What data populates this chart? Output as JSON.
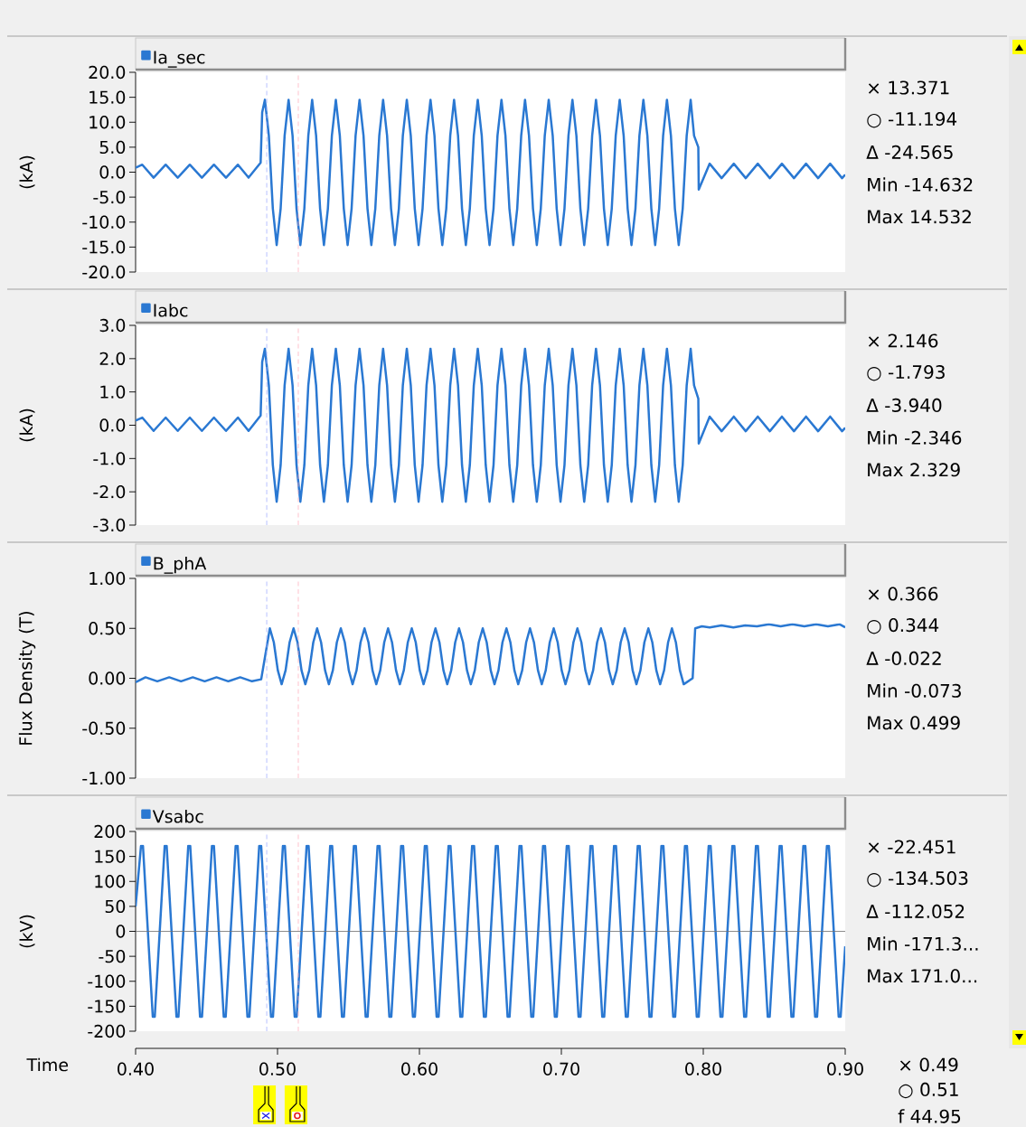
{
  "chart_data": [
    {
      "type": "line",
      "ylabel": "(kA)",
      "xlim": [
        0.4,
        0.9
      ],
      "ylim": [
        -20,
        20
      ],
      "tick_labels": "y",
      "legend": "top left",
      "yticks": [
        {
          "value": -20,
          "label": "-20.0"
        },
        {
          "value": -15,
          "label": "-15.0"
        },
        {
          "value": -10,
          "label": "-10.0"
        },
        {
          "value": -5,
          "label": "-5.0"
        },
        {
          "value": 0,
          "label": "0.0"
        },
        {
          "value": 5,
          "label": "5.0"
        },
        {
          "value": 10,
          "label": "10.0"
        },
        {
          "value": 15,
          "label": "15.0"
        },
        {
          "value": 20,
          "label": "20.0"
        }
      ],
      "x": [
        0.4,
        0.4047,
        0.4127,
        0.4212,
        0.4297,
        0.4382,
        0.4467,
        0.4552,
        0.4637,
        0.4721,
        0.4796,
        0.4881,
        0.4892,
        0.4911,
        0.4939,
        0.4967,
        0.4994,
        0.5022,
        0.505,
        0.5078,
        0.5106,
        0.5134,
        0.5161,
        0.5189,
        0.5217,
        0.5244,
        0.5272,
        0.53,
        0.5327,
        0.5355,
        0.5383,
        0.5411,
        0.5439,
        0.5467,
        0.5494,
        0.5522,
        0.555,
        0.5578,
        0.5606,
        0.5634,
        0.5661,
        0.5689,
        0.5717,
        0.5744,
        0.5772,
        0.58,
        0.5827,
        0.5855,
        0.5883,
        0.5911,
        0.5939,
        0.5967,
        0.5994,
        0.6022,
        0.605,
        0.6078,
        0.6106,
        0.6134,
        0.6161,
        0.6189,
        0.6217,
        0.6244,
        0.6272,
        0.63,
        0.6327,
        0.6355,
        0.6383,
        0.6411,
        0.6439,
        0.6467,
        0.6494,
        0.6522,
        0.655,
        0.6578,
        0.6606,
        0.6634,
        0.6661,
        0.6689,
        0.6717,
        0.6744,
        0.6772,
        0.68,
        0.6827,
        0.6855,
        0.6883,
        0.6911,
        0.6939,
        0.6967,
        0.6994,
        0.7022,
        0.705,
        0.7078,
        0.7106,
        0.7134,
        0.7161,
        0.7189,
        0.7217,
        0.7244,
        0.7272,
        0.73,
        0.7327,
        0.7355,
        0.7383,
        0.7411,
        0.7439,
        0.7467,
        0.7494,
        0.7522,
        0.755,
        0.7578,
        0.7606,
        0.7634,
        0.7661,
        0.7689,
        0.7717,
        0.7744,
        0.7772,
        0.78,
        0.7827,
        0.7855,
        0.7883,
        0.7911,
        0.7935,
        0.7965,
        0.7968,
        0.8045,
        0.8129,
        0.8215,
        0.8299,
        0.8384,
        0.8469,
        0.8554,
        0.8639,
        0.8724,
        0.8809,
        0.8894,
        0.8978,
        0.9
      ],
      "series": [
        {
          "name": "Ia_sec",
          "color": "#2a78d2",
          "values": [
            0.9,
            1.5,
            -1.1,
            1.5,
            -1.1,
            1.5,
            -1.1,
            1.5,
            -1.1,
            1.5,
            -1.1,
            1.9,
            12.0,
            14.5,
            7.3,
            -7.3,
            -14.6,
            -7.3,
            7.3,
            14.5,
            7.3,
            -7.3,
            -14.6,
            -7.3,
            7.3,
            14.5,
            7.3,
            -7.3,
            -14.6,
            -7.3,
            7.3,
            14.5,
            7.3,
            -7.3,
            -14.6,
            -7.3,
            7.3,
            14.5,
            7.3,
            -7.3,
            -14.6,
            -7.3,
            7.3,
            14.5,
            7.3,
            -7.3,
            -14.6,
            -7.3,
            7.3,
            14.5,
            7.3,
            -7.3,
            -14.6,
            -7.3,
            7.3,
            14.5,
            7.3,
            -7.3,
            -14.6,
            -7.3,
            7.3,
            14.5,
            7.3,
            -7.3,
            -14.6,
            -7.3,
            7.3,
            14.5,
            7.3,
            -7.3,
            -14.6,
            -7.3,
            7.3,
            14.5,
            7.3,
            -7.3,
            -14.6,
            -7.3,
            7.3,
            14.5,
            7.3,
            -7.3,
            -14.6,
            -7.3,
            7.3,
            14.5,
            7.3,
            -7.3,
            -14.6,
            -7.3,
            7.3,
            14.5,
            7.3,
            -7.3,
            -14.6,
            -7.3,
            7.3,
            14.5,
            7.3,
            -7.3,
            -14.6,
            -7.3,
            7.3,
            14.5,
            7.3,
            -7.3,
            -14.6,
            -7.3,
            7.3,
            14.5,
            7.3,
            -7.3,
            -14.6,
            -7.3,
            7.3,
            14.5,
            7.3,
            -7.3,
            -14.6,
            -7.3,
            7.3,
            14.5,
            7.3,
            5.0,
            -3.5,
            1.7,
            -1.2,
            1.7,
            -1.2,
            1.7,
            -1.2,
            1.7,
            -1.2,
            1.7,
            -1.2,
            1.7,
            -1.2,
            -0.5
          ]
        }
      ],
      "ref_lines": [
        {
          "axis": "x",
          "value": 0.4924,
          "color": "#a6b0ff",
          "line_style": "dashed"
        },
        {
          "axis": "x",
          "value": 0.5146,
          "color": "#ffa8b8",
          "line_style": "dashed"
        }
      ],
      "annotations": [
        "× 13.371",
        "○ -11.194",
        "Δ -24.565",
        "Min -14.632",
        "Max 14.532"
      ]
    },
    {
      "type": "line",
      "ylabel": "(kA)",
      "xlim": [
        0.4,
        0.9
      ],
      "ylim": [
        -3,
        3
      ],
      "tick_labels": "y",
      "legend": "top left",
      "yticks": [
        {
          "value": -3,
          "label": "-3.0"
        },
        {
          "value": -2,
          "label": "-2.0"
        },
        {
          "value": -1,
          "label": "-1.0"
        },
        {
          "value": 0,
          "label": "0.0"
        },
        {
          "value": 1,
          "label": "1.0"
        },
        {
          "value": 2,
          "label": "2.0"
        },
        {
          "value": 3,
          "label": "3.0"
        }
      ],
      "x": [
        0.4,
        0.4047,
        0.4127,
        0.4212,
        0.4297,
        0.4382,
        0.4467,
        0.4552,
        0.4637,
        0.4721,
        0.4796,
        0.4881,
        0.4892,
        0.4911,
        0.4939,
        0.4967,
        0.4994,
        0.5022,
        0.505,
        0.5078,
        0.5106,
        0.5134,
        0.5161,
        0.5189,
        0.5217,
        0.5244,
        0.5272,
        0.53,
        0.5327,
        0.5355,
        0.5383,
        0.5411,
        0.5439,
        0.5467,
        0.5494,
        0.5522,
        0.555,
        0.5578,
        0.5606,
        0.5634,
        0.5661,
        0.5689,
        0.5717,
        0.5744,
        0.5772,
        0.58,
        0.5827,
        0.5855,
        0.5883,
        0.5911,
        0.5939,
        0.5967,
        0.5994,
        0.6022,
        0.605,
        0.6078,
        0.6106,
        0.6134,
        0.6161,
        0.6189,
        0.6217,
        0.6244,
        0.6272,
        0.63,
        0.6327,
        0.6355,
        0.6383,
        0.6411,
        0.6439,
        0.6467,
        0.6494,
        0.6522,
        0.655,
        0.6578,
        0.6606,
        0.6634,
        0.6661,
        0.6689,
        0.6717,
        0.6744,
        0.6772,
        0.68,
        0.6827,
        0.6855,
        0.6883,
        0.6911,
        0.6939,
        0.6967,
        0.6994,
        0.7022,
        0.705,
        0.7078,
        0.7106,
        0.7134,
        0.7161,
        0.7189,
        0.7217,
        0.7244,
        0.7272,
        0.73,
        0.7327,
        0.7355,
        0.7383,
        0.7411,
        0.7439,
        0.7467,
        0.7494,
        0.7522,
        0.755,
        0.7578,
        0.7606,
        0.7634,
        0.7661,
        0.7689,
        0.7717,
        0.7744,
        0.7772,
        0.78,
        0.7827,
        0.7855,
        0.7883,
        0.7911,
        0.7935,
        0.7965,
        0.7968,
        0.8045,
        0.8129,
        0.8215,
        0.8299,
        0.8384,
        0.8469,
        0.8554,
        0.8639,
        0.8724,
        0.8809,
        0.8894,
        0.8978,
        0.9
      ],
      "series": [
        {
          "name": "Iabc",
          "color": "#2a78d2",
          "values": [
            0.14,
            0.23,
            -0.17,
            0.23,
            -0.17,
            0.23,
            -0.17,
            0.23,
            -0.17,
            0.23,
            -0.17,
            0.29,
            1.9,
            2.3,
            1.2,
            -1.2,
            -2.3,
            -1.2,
            1.2,
            2.3,
            1.2,
            -1.2,
            -2.3,
            -1.2,
            1.2,
            2.3,
            1.2,
            -1.2,
            -2.3,
            -1.2,
            1.2,
            2.3,
            1.2,
            -1.2,
            -2.3,
            -1.2,
            1.2,
            2.3,
            1.2,
            -1.2,
            -2.3,
            -1.2,
            1.2,
            2.3,
            1.2,
            -1.2,
            -2.3,
            -1.2,
            1.2,
            2.3,
            1.2,
            -1.2,
            -2.3,
            -1.2,
            1.2,
            2.3,
            1.2,
            -1.2,
            -2.3,
            -1.2,
            1.2,
            2.3,
            1.2,
            -1.2,
            -2.3,
            -1.2,
            1.2,
            2.3,
            1.2,
            -1.2,
            -2.3,
            -1.2,
            1.2,
            2.3,
            1.2,
            -1.2,
            -2.3,
            -1.2,
            1.2,
            2.3,
            1.2,
            -1.2,
            -2.3,
            -1.2,
            1.2,
            2.3,
            1.2,
            -1.2,
            -2.3,
            -1.2,
            1.2,
            2.3,
            1.2,
            -1.2,
            -2.3,
            -1.2,
            1.2,
            2.3,
            1.2,
            -1.2,
            -2.3,
            -1.2,
            1.2,
            2.3,
            1.2,
            -1.2,
            -2.3,
            -1.2,
            1.2,
            2.3,
            1.2,
            -1.2,
            -2.3,
            -1.2,
            1.2,
            2.3,
            1.2,
            -1.2,
            -2.3,
            -1.2,
            1.2,
            2.3,
            1.2,
            0.8,
            -0.55,
            0.26,
            -0.18,
            0.26,
            -0.18,
            0.26,
            -0.18,
            0.26,
            -0.18,
            0.26,
            -0.18,
            0.26,
            -0.18,
            -0.08
          ]
        }
      ],
      "ref_lines": [
        {
          "axis": "x",
          "value": 0.4924,
          "color": "#a6b0ff",
          "line_style": "dashed"
        },
        {
          "axis": "x",
          "value": 0.5146,
          "color": "#ffa8b8",
          "line_style": "dashed"
        }
      ],
      "annotations": [
        "× 2.146",
        "○ -1.793",
        "Δ -3.940",
        "Min -2.346",
        "Max 2.329"
      ]
    },
    {
      "type": "line",
      "ylabel": "Flux Density (T)",
      "xlim": [
        0.4,
        0.9
      ],
      "ylim": [
        -1,
        1
      ],
      "tick_labels": "y",
      "legend": "top left",
      "yticks": [
        {
          "value": -1,
          "label": "-1.00"
        },
        {
          "value": -0.5,
          "label": "-0.50"
        },
        {
          "value": 0,
          "label": "0.00"
        },
        {
          "value": 0.5,
          "label": "0.50"
        },
        {
          "value": 1,
          "label": "1.00"
        }
      ],
      "x": [
        0.4,
        0.407,
        0.4153,
        0.4237,
        0.432,
        0.4403,
        0.4487,
        0.457,
        0.4653,
        0.4737,
        0.482,
        0.4885,
        0.4946,
        0.4974,
        0.5002,
        0.5029,
        0.5057,
        0.5085,
        0.5113,
        0.5141,
        0.5169,
        0.5196,
        0.5224,
        0.5252,
        0.5279,
        0.5307,
        0.5335,
        0.5362,
        0.539,
        0.5418,
        0.5446,
        0.5474,
        0.5502,
        0.5529,
        0.5557,
        0.5585,
        0.5613,
        0.5641,
        0.5669,
        0.5696,
        0.5724,
        0.5752,
        0.5779,
        0.5807,
        0.5835,
        0.5862,
        0.589,
        0.5918,
        0.5946,
        0.5974,
        0.6002,
        0.6029,
        0.6057,
        0.6085,
        0.6113,
        0.6141,
        0.6169,
        0.6196,
        0.6224,
        0.6252,
        0.6279,
        0.6307,
        0.6335,
        0.6362,
        0.639,
        0.6418,
        0.6446,
        0.6474,
        0.6502,
        0.6529,
        0.6557,
        0.6585,
        0.6613,
        0.6641,
        0.6669,
        0.6696,
        0.6724,
        0.6752,
        0.6779,
        0.6807,
        0.6835,
        0.6862,
        0.689,
        0.6918,
        0.6946,
        0.6974,
        0.7002,
        0.7029,
        0.7057,
        0.7085,
        0.7113,
        0.7141,
        0.7169,
        0.7196,
        0.7224,
        0.7252,
        0.7279,
        0.7307,
        0.7335,
        0.7362,
        0.739,
        0.7418,
        0.7446,
        0.7474,
        0.7502,
        0.7529,
        0.7557,
        0.7585,
        0.7613,
        0.7641,
        0.7669,
        0.7696,
        0.7724,
        0.7752,
        0.7779,
        0.7807,
        0.7835,
        0.7862,
        0.7925,
        0.7943,
        0.799,
        0.8045,
        0.8128,
        0.8212,
        0.8295,
        0.8378,
        0.8462,
        0.8545,
        0.8628,
        0.8712,
        0.8795,
        0.8878,
        0.8962,
        0.9
      ],
      "series": [
        {
          "name": "B_phA",
          "color": "#2a78d2",
          "values": [
            -0.04,
            0.01,
            -0.03,
            0.01,
            -0.03,
            0.01,
            -0.03,
            0.01,
            -0.03,
            0.01,
            -0.03,
            -0.01,
            0.5,
            0.36,
            0.08,
            -0.06,
            0.08,
            0.36,
            0.5,
            0.36,
            0.08,
            -0.06,
            0.08,
            0.36,
            0.5,
            0.36,
            0.08,
            -0.06,
            0.08,
            0.36,
            0.5,
            0.36,
            0.08,
            -0.06,
            0.08,
            0.36,
            0.5,
            0.36,
            0.08,
            -0.06,
            0.08,
            0.36,
            0.5,
            0.36,
            0.08,
            -0.06,
            0.08,
            0.36,
            0.5,
            0.36,
            0.08,
            -0.06,
            0.08,
            0.36,
            0.5,
            0.36,
            0.08,
            -0.06,
            0.08,
            0.36,
            0.5,
            0.36,
            0.08,
            -0.06,
            0.08,
            0.36,
            0.5,
            0.36,
            0.08,
            -0.06,
            0.08,
            0.36,
            0.5,
            0.36,
            0.08,
            -0.06,
            0.08,
            0.36,
            0.5,
            0.36,
            0.08,
            -0.06,
            0.08,
            0.36,
            0.5,
            0.36,
            0.08,
            -0.06,
            0.08,
            0.36,
            0.5,
            0.36,
            0.08,
            -0.06,
            0.08,
            0.36,
            0.5,
            0.36,
            0.08,
            -0.06,
            0.08,
            0.36,
            0.5,
            0.36,
            0.08,
            -0.06,
            0.08,
            0.36,
            0.5,
            0.36,
            0.08,
            -0.06,
            0.08,
            0.36,
            0.5,
            0.36,
            0.08,
            -0.06,
            0.0,
            0.5,
            0.52,
            0.51,
            0.53,
            0.51,
            0.53,
            0.52,
            0.54,
            0.52,
            0.54,
            0.52,
            0.54,
            0.52,
            0.54,
            0.51
          ]
        }
      ],
      "ref_lines": [
        {
          "axis": "x",
          "value": 0.4924,
          "color": "#a6b0ff",
          "line_style": "dashed"
        },
        {
          "axis": "x",
          "value": 0.5146,
          "color": "#ffa8b8",
          "line_style": "dashed"
        }
      ],
      "annotations": [
        "× 0.366",
        "○ 0.344",
        "Δ -0.022",
        "Min -0.073",
        "Max 0.499"
      ]
    },
    {
      "type": "line",
      "ylabel": "(kV)",
      "xlabel": "Time",
      "xlim": [
        0.4,
        0.9
      ],
      "ylim": [
        -200,
        200
      ],
      "legend": "top left",
      "xticks": [
        {
          "value": 0.4,
          "label": "0.40"
        },
        {
          "value": 0.5,
          "label": "0.50"
        },
        {
          "value": 0.6,
          "label": "0.60"
        },
        {
          "value": 0.7,
          "label": "0.70"
        },
        {
          "value": 0.8,
          "label": "0.80"
        },
        {
          "value": 0.9,
          "label": "0.90"
        }
      ],
      "yticks": [
        -200,
        -150,
        -100,
        -50,
        0,
        50,
        100,
        150,
        200
      ],
      "x": [
        0.4,
        0.4038,
        0.4052,
        0.4121,
        0.4135,
        0.4205,
        0.4219,
        0.4288,
        0.4302,
        0.4371,
        0.4385,
        0.4454,
        0.4468,
        0.4538,
        0.4552,
        0.4621,
        0.4635,
        0.4705,
        0.4719,
        0.4788,
        0.4802,
        0.4871,
        0.4885,
        0.4954,
        0.4968,
        0.5038,
        0.5052,
        0.5121,
        0.5135,
        0.5205,
        0.5219,
        0.5288,
        0.5302,
        0.5371,
        0.5385,
        0.5454,
        0.5468,
        0.5538,
        0.5552,
        0.5621,
        0.5635,
        0.5705,
        0.5719,
        0.5788,
        0.5802,
        0.5871,
        0.5885,
        0.5954,
        0.5968,
        0.6038,
        0.6052,
        0.6121,
        0.6135,
        0.6205,
        0.6219,
        0.6288,
        0.6302,
        0.6371,
        0.6385,
        0.6454,
        0.6468,
        0.6538,
        0.6552,
        0.6621,
        0.6635,
        0.6705,
        0.6719,
        0.6788,
        0.6802,
        0.6871,
        0.6885,
        0.6954,
        0.6968,
        0.7038,
        0.7052,
        0.7121,
        0.7135,
        0.7205,
        0.7219,
        0.7288,
        0.7302,
        0.7371,
        0.7385,
        0.7454,
        0.7468,
        0.7538,
        0.7552,
        0.7621,
        0.7635,
        0.7705,
        0.7719,
        0.7788,
        0.7802,
        0.7871,
        0.7885,
        0.7954,
        0.7968,
        0.8038,
        0.8052,
        0.8121,
        0.8135,
        0.8205,
        0.8219,
        0.8288,
        0.8302,
        0.8371,
        0.8385,
        0.8454,
        0.8468,
        0.8538,
        0.8552,
        0.8621,
        0.8635,
        0.8705,
        0.8719,
        0.8788,
        0.8802,
        0.8871,
        0.8885,
        0.8954,
        0.8968,
        0.9
      ],
      "series": [
        {
          "name": "Vsabc",
          "color": "#2a78d2",
          "values": [
            50,
            171,
            171,
            -171,
            -171,
            171,
            171,
            -171,
            -171,
            171,
            171,
            -171,
            -171,
            171,
            171,
            -171,
            -171,
            171,
            171,
            -171,
            -171,
            171,
            171,
            -171,
            -171,
            171,
            171,
            -171,
            -171,
            171,
            171,
            -171,
            -171,
            171,
            171,
            -171,
            -171,
            171,
            171,
            -171,
            -171,
            171,
            171,
            -171,
            -171,
            171,
            171,
            -171,
            -171,
            171,
            171,
            -171,
            -171,
            171,
            171,
            -171,
            -171,
            171,
            171,
            -171,
            -171,
            171,
            171,
            -171,
            -171,
            171,
            171,
            -171,
            -171,
            171,
            171,
            -171,
            -171,
            171,
            171,
            -171,
            -171,
            171,
            171,
            -171,
            -171,
            171,
            171,
            -171,
            -171,
            171,
            171,
            -171,
            -171,
            171,
            171,
            -171,
            -171,
            171,
            171,
            -171,
            -171,
            171,
            171,
            -171,
            -171,
            171,
            171,
            -171,
            -171,
            171,
            171,
            -171,
            -171,
            171,
            171,
            -171,
            -171,
            171,
            171,
            -171,
            -171,
            171,
            171,
            -171,
            -171,
            -30
          ]
        }
      ],
      "ref_lines": [
        {
          "axis": "x",
          "value": 0.4924,
          "color": "#a6b0ff",
          "line_style": "dashed"
        },
        {
          "axis": "x",
          "value": 0.5146,
          "color": "#ffa8b8",
          "line_style": "dashed"
        },
        {
          "axis": "y",
          "value": 0,
          "color": "#707070"
        }
      ],
      "annotations": [
        "× -22.451",
        "○ -134.503",
        "Δ -112.052",
        "Min -171.3...",
        "Max 171.0...",
        "× 0.49",
        "○ 0.51",
        "f 44.95"
      ]
    }
  ]
}
